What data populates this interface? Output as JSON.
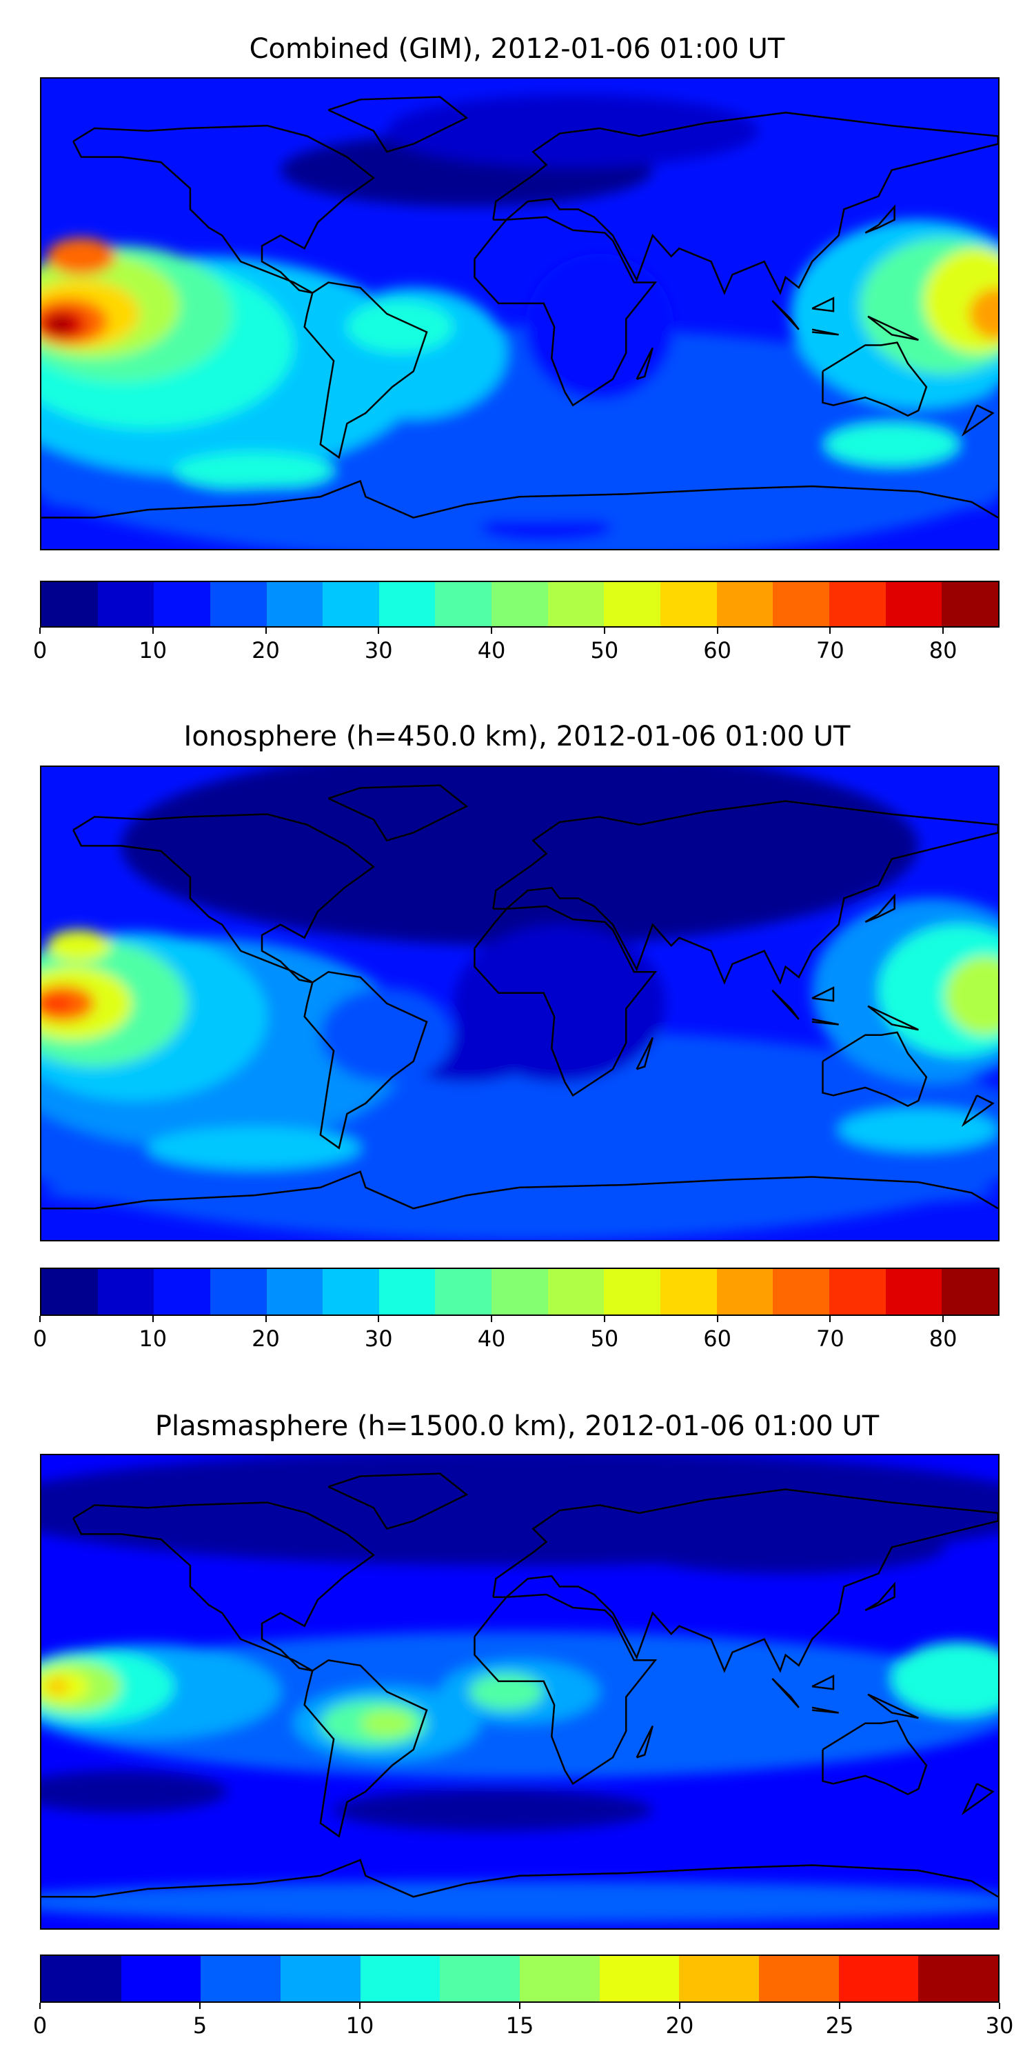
{
  "chart_data": [
    {
      "type": "heatmap",
      "title": "Combined (GIM), 2012-01-06 01:00 UT",
      "xlim": [
        -180,
        180
      ],
      "ylim": [
        -90,
        90
      ],
      "colorbar": {
        "ticks": [
          "0",
          "10",
          "20",
          "30",
          "40",
          "50",
          "60",
          "70",
          "80"
        ],
        "range": [
          0,
          85
        ],
        "step": 5,
        "colors": [
          "#00008f",
          "#0000cc",
          "#0010ff",
          "#0050ff",
          "#0090ff",
          "#00c8ff",
          "#16ffe0",
          "#50ffa6",
          "#84ff72",
          "#b0ff46",
          "#e0ff16",
          "#ffd800",
          "#ffa000",
          "#ff6800",
          "#ff3000",
          "#e00000",
          "#9a0000"
        ]
      },
      "max_region": "central Pacific, ~80"
    },
    {
      "type": "heatmap",
      "title": "Ionosphere  (h=450.0 km), 2012-01-06 01:00 UT",
      "xlim": [
        -180,
        180
      ],
      "ylim": [
        -90,
        90
      ],
      "colorbar": {
        "ticks": [
          "0",
          "10",
          "20",
          "30",
          "40",
          "50",
          "60",
          "70",
          "80"
        ],
        "range": [
          0,
          85
        ],
        "step": 5,
        "colors": [
          "#00008f",
          "#0000cc",
          "#0010ff",
          "#0050ff",
          "#0090ff",
          "#00c8ff",
          "#16ffe0",
          "#50ffa6",
          "#84ff72",
          "#b0ff46",
          "#e0ff16",
          "#ffd800",
          "#ffa000",
          "#ff6800",
          "#ff3000",
          "#e00000",
          "#9a0000"
        ]
      },
      "max_region": "central Pacific, ~70"
    },
    {
      "type": "heatmap",
      "title": "Plasmasphere (h=1500.0 km), 2012-01-06 01:00 UT",
      "xlim": [
        -180,
        180
      ],
      "ylim": [
        -90,
        90
      ],
      "colorbar": {
        "ticks": [
          "0",
          "5",
          "10",
          "15",
          "20",
          "25",
          "30"
        ],
        "range": [
          0,
          30
        ],
        "step": 2.5,
        "colors": [
          "#00009f",
          "#0000ff",
          "#0060ff",
          "#00a8ff",
          "#16ffe0",
          "#50ffa6",
          "#a0ff56",
          "#e8ff10",
          "#ffc000",
          "#ff6a00",
          "#ff1a00",
          "#a00000"
        ]
      },
      "max_region": "central Pacific, ~20"
    }
  ]
}
